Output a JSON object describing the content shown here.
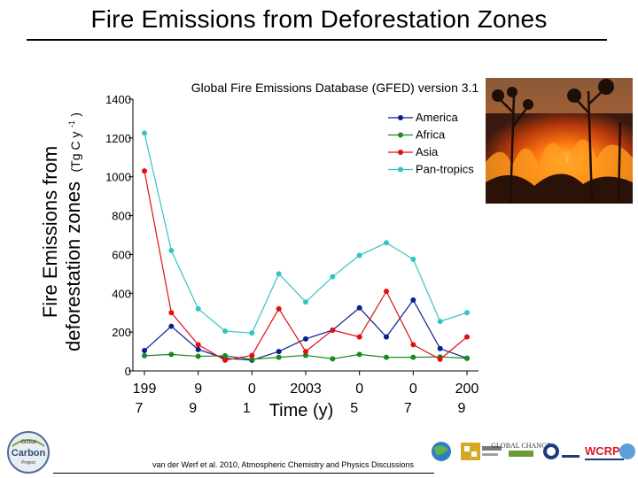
{
  "slide": {
    "title": "Fire Emissions from Deforestation Zones",
    "citation": "van der Werf et al. 2010, Atmospheric Chemistry and Physics Discussions"
  },
  "logos": {
    "gcp_top": "Global",
    "gcp_main": "Carbon",
    "gcp_sub": "Project",
    "global_change": "GLOBAL CHANGE",
    "wcrp": "WCRP"
  },
  "chart_data": {
    "type": "line",
    "title": "Global Fire Emissions Database (GFED) version 3.1",
    "ylabel_line1": "Fire Emissions from",
    "ylabel_line2": "deforestation zones",
    "ylabel_units": "(Tg C y",
    "ylabel_exp": "-1",
    "ylabel_close": ")",
    "xlabel": "Time (y)",
    "ylim": [
      0,
      1400
    ],
    "yticks": [
      "1400",
      "1200",
      "1000",
      "800",
      "600",
      "400",
      "200",
      "0"
    ],
    "ytick_values": [
      1400,
      1200,
      1000,
      800,
      600,
      400,
      200,
      0
    ],
    "xtick_labels": [
      {
        "year": 1997,
        "top": "199",
        "bottom": "7"
      },
      {
        "year": 1999,
        "top": "9",
        "bottom": "9"
      },
      {
        "year": 2001,
        "top": "0",
        "bottom": "1"
      },
      {
        "year": 2003,
        "top": "2003",
        "bottom": ""
      },
      {
        "year": 2005,
        "top": "0",
        "bottom": "5"
      },
      {
        "year": 2007,
        "top": "0",
        "bottom": "7"
      },
      {
        "year": 2009,
        "top": "200",
        "bottom": "9"
      }
    ],
    "x": [
      1997,
      1998,
      1999,
      2000,
      2001,
      2002,
      2003,
      2004,
      2005,
      2006,
      2007,
      2008,
      2009
    ],
    "xlim": [
      1997,
      2009
    ],
    "legend_position": "top-right",
    "series": [
      {
        "name": "America",
        "color": "#0a1f8f",
        "values": [
          105,
          230,
          110,
          65,
          55,
          100,
          165,
          210,
          325,
          175,
          365,
          115,
          65
        ]
      },
      {
        "name": "Africa",
        "color": "#1a8a1a",
        "values": [
          78,
          85,
          75,
          78,
          60,
          70,
          80,
          62,
          85,
          70,
          70,
          72,
          65
        ]
      },
      {
        "name": "Asia",
        "color": "#e01010",
        "values": [
          1030,
          300,
          135,
          55,
          80,
          320,
          100,
          210,
          175,
          410,
          135,
          60,
          175
        ]
      },
      {
        "name": "Pan-tropics",
        "color": "#33c4c4",
        "values": [
          1225,
          620,
          320,
          205,
          195,
          500,
          355,
          485,
          595,
          660,
          575,
          255,
          300
        ]
      }
    ]
  }
}
